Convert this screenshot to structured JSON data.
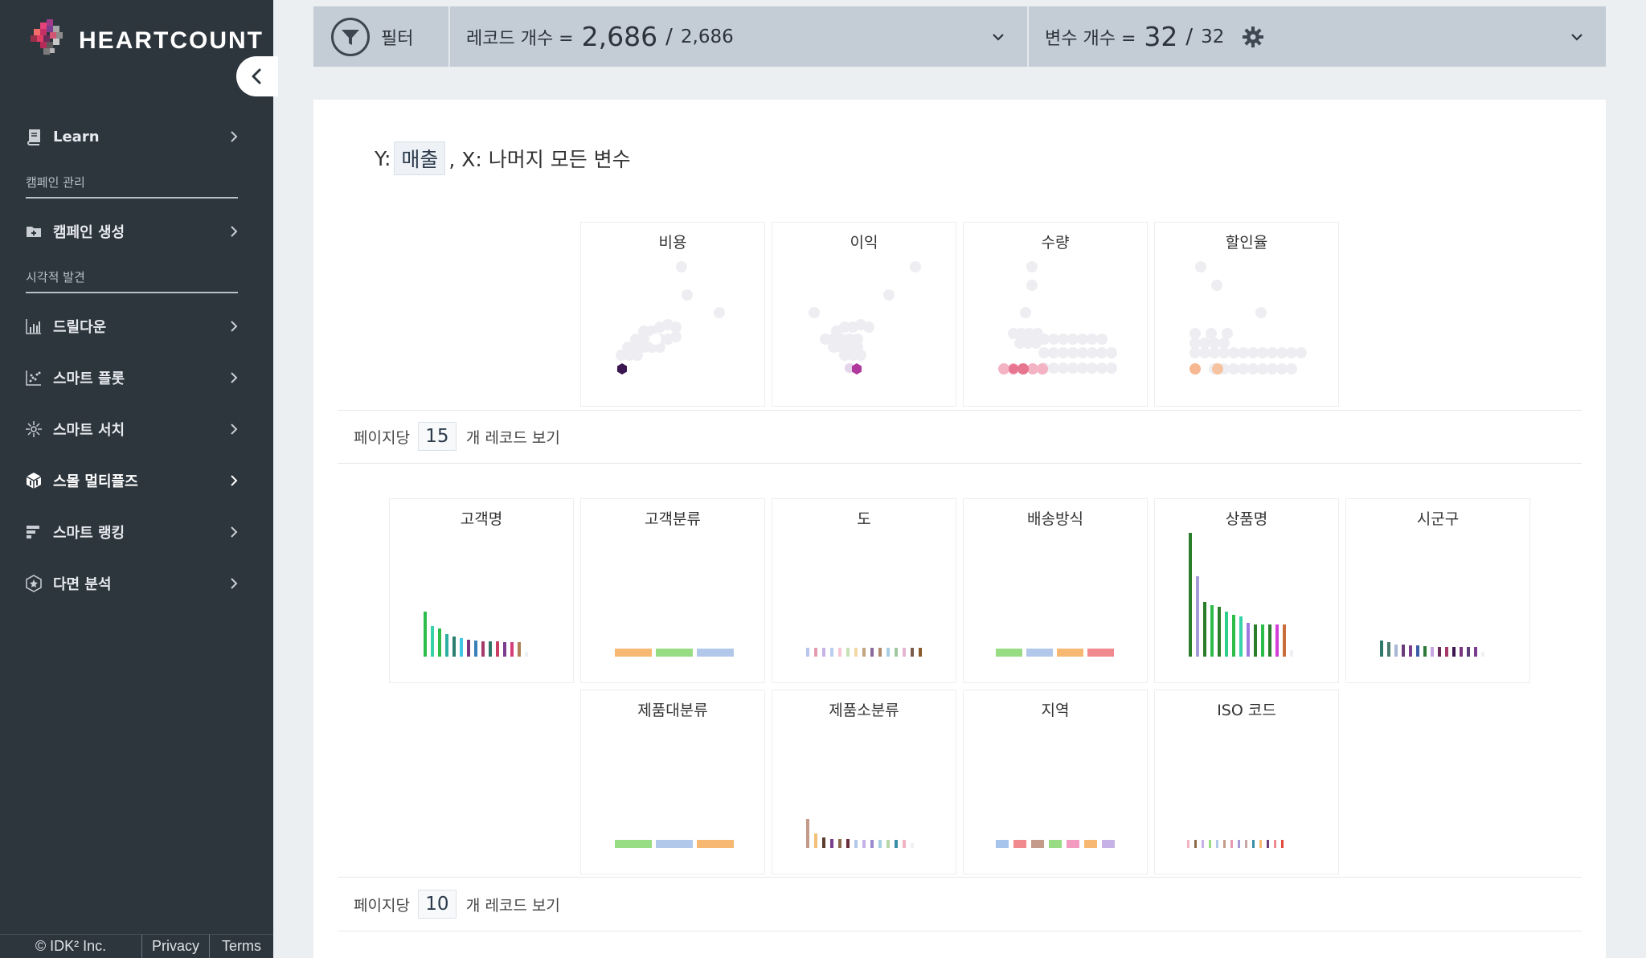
{
  "app": {
    "logo_text": "HEARTCOUNT"
  },
  "sidebar": {
    "learn": "Learn",
    "section_campaign": "캠페인 관리",
    "campaign_create": "캠페인 생성",
    "section_visual": "시각적 발견",
    "drilldown": "드릴다운",
    "smart_plot": "스마트 플롯",
    "smart_search": "스마트 서치",
    "small_multiples": "스몰 멀티플즈",
    "smart_ranking": "스마트 랭킹",
    "multi_analysis": "다면 분석"
  },
  "footer": {
    "copyright": "© IDK² Inc.",
    "privacy": "Privacy",
    "terms": "Terms"
  },
  "filterbar": {
    "filter_label": "필터",
    "records_label": "레코드 개수 =",
    "records_filtered": "2,686",
    "records_total": "2,686",
    "vars_label": "변수 개수 =",
    "vars_selected": "32",
    "vars_total": "32",
    "slash": "/"
  },
  "main": {
    "y_prefix": "Y:",
    "y_var": "매출",
    "x_suffix": ", X: 나머지 모든 변수",
    "numeric_cards": [
      {
        "title": "비용"
      },
      {
        "title": "이익"
      },
      {
        "title": "수량"
      },
      {
        "title": "할인율"
      }
    ],
    "pager1": {
      "prefix": "페이지당",
      "value": "15",
      "suffix": "개 레코드 보기"
    },
    "categorical_cards": [
      {
        "title": "고객명"
      },
      {
        "title": "고객분류"
      },
      {
        "title": "도"
      },
      {
        "title": "배송방식"
      },
      {
        "title": "상품명"
      },
      {
        "title": "시군구"
      },
      {
        "title": "제품대분류"
      },
      {
        "title": "제품소분류"
      },
      {
        "title": "지역"
      },
      {
        "title": "ISO 코드"
      }
    ],
    "pager2": {
      "prefix": "페이지당",
      "value": "10",
      "suffix": "개 레코드 보기"
    }
  },
  "colors": {
    "sidebar_bg": "#2d353d",
    "filterbar_bg": "#c4ccd6",
    "accent_purple": "#3b1650",
    "accent_magenta": "#b0399e",
    "accent_pink": "#e87a98",
    "accent_peach": "#f6b890"
  }
}
